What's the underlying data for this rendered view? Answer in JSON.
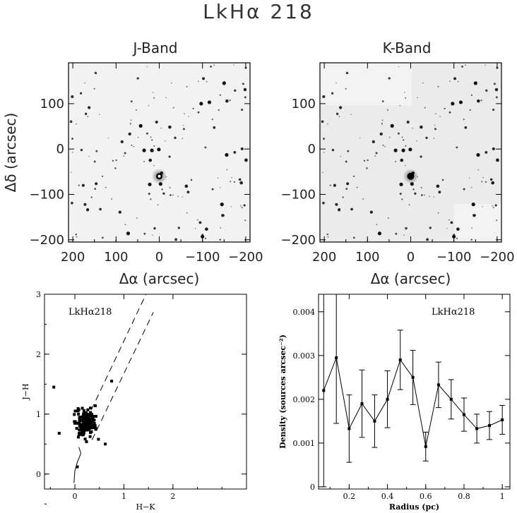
{
  "figure": {
    "title": "LkHα 218"
  },
  "chart_data": [
    {
      "type": "image",
      "title": "J-Band",
      "xlabel": "Δα (arcsec)",
      "ylabel": "Δδ (arcsec)",
      "xlim": [
        210,
        -210
      ],
      "ylim": [
        -205,
        190
      ],
      "xticks": [
        200,
        100,
        0,
        -100,
        -200
      ],
      "yticks": [
        100,
        0,
        -100,
        -200
      ],
      "xtick_labels": [
        "200",
        "100",
        "0",
        "−100",
        "−200"
      ],
      "ytick_labels": [
        "100",
        "0",
        "−100",
        "−200"
      ],
      "colors": {
        "background": "#f2f2f2",
        "star": "#111111"
      }
    },
    {
      "type": "image",
      "title": "K-Band",
      "xlabel": "Δα (arcsec)",
      "ylabel": "",
      "xlim": [
        210,
        -210
      ],
      "ylim": [
        -205,
        190
      ],
      "xticks": [
        200,
        100,
        0,
        -100,
        -200
      ],
      "yticks": [
        100,
        0,
        -100,
        -200
      ],
      "xtick_labels": [
        "200",
        "100",
        "0",
        "−100",
        "−200"
      ],
      "ytick_labels": [
        "100",
        "0",
        "−100",
        "−200"
      ],
      "colors": {
        "background": "#ebebeb",
        "star": "#111111"
      }
    },
    {
      "type": "scatter",
      "annotation": "LkHα218",
      "xlabel": "H−K",
      "ylabel": "J−H",
      "xlim": [
        -0.62,
        3.5
      ],
      "ylim": [
        -0.25,
        3.0
      ],
      "xticks": [
        0,
        1,
        2
      ],
      "yticks": [
        0,
        1,
        2,
        3
      ],
      "reddening_lines": [
        {
          "x": [
            0.15,
            1.45
          ],
          "y": [
            0.75,
            3.0
          ]
        },
        {
          "x": [
            0.35,
            1.6
          ],
          "y": [
            0.57,
            2.7
          ]
        }
      ],
      "main_sequence": {
        "x": [
          -0.02,
          0.0,
          0.05,
          0.1,
          0.12,
          0.08
        ],
        "y": [
          -0.15,
          0.05,
          0.2,
          0.3,
          0.35,
          0.45
        ]
      }
    },
    {
      "type": "line",
      "annotation": "LkHα218",
      "xlabel": "Radius (pc)",
      "ylabel": "Density (sources arcsec⁻²)",
      "xlim": [
        0.04,
        1.04
      ],
      "ylim": [
        -5e-05,
        0.0044
      ],
      "xticks": [
        0.2,
        0.4,
        0.6,
        0.8,
        1.0
      ],
      "xtick_labels": [
        "0.2",
        "0.4",
        "0.6",
        "0.8",
        "1"
      ],
      "yticks": [
        0,
        0.001,
        0.002,
        0.003,
        0.004
      ],
      "ytick_labels": [
        "0",
        "0.001",
        "0.002",
        "0.003",
        "0.004"
      ],
      "x": [
        0.067,
        0.133,
        0.2,
        0.267,
        0.333,
        0.4,
        0.467,
        0.533,
        0.6,
        0.667,
        0.733,
        0.8,
        0.867,
        0.933,
        1.0
      ],
      "y": [
        0.0022,
        0.00295,
        0.00133,
        0.0019,
        0.0015,
        0.002,
        0.0029,
        0.0025,
        0.00092,
        0.00233,
        0.002,
        0.00165,
        0.00133,
        0.0014,
        0.00153
      ],
      "yerr": [
        0.0022,
        0.0015,
        0.00077,
        0.00077,
        0.0006,
        0.00065,
        0.00068,
        0.00062,
        0.00033,
        0.00052,
        0.00045,
        0.00038,
        0.00033,
        0.00032,
        0.00033
      ]
    }
  ]
}
